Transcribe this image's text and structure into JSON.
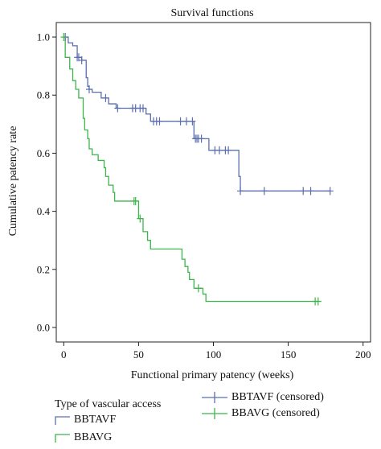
{
  "chart_data": {
    "type": "line",
    "title": "Survival functions",
    "xlabel": "Functional primary patency (weeks)",
    "ylabel": "Cumulative patency rate",
    "xlim": [
      -5,
      205
    ],
    "ylim": [
      -0.05,
      1.05
    ],
    "x_ticks": [
      0,
      50,
      100,
      150,
      200
    ],
    "y_ticks": [
      0.0,
      0.2,
      0.4,
      0.6,
      0.8,
      1.0
    ],
    "x_tick_labels": [
      "0",
      "50",
      "100",
      "150",
      "200"
    ],
    "y_tick_labels": [
      "0.0",
      "0.2",
      "0.4",
      "0.6",
      "0.8",
      "1.0"
    ],
    "grid": false,
    "legend_title": "Type of vascular access",
    "series": [
      {
        "name": "BBTAVF",
        "color": "#5b6fae",
        "x": [
          0,
          3,
          6,
          9,
          12,
          15,
          16,
          17,
          19,
          25,
          30,
          35,
          55,
          58,
          87,
          97,
          117,
          118,
          178
        ],
        "y": [
          1.0,
          0.98,
          0.97,
          0.93,
          0.92,
          0.86,
          0.83,
          0.82,
          0.81,
          0.79,
          0.77,
          0.755,
          0.735,
          0.71,
          0.65,
          0.61,
          0.52,
          0.47,
          0.47
        ]
      },
      {
        "name": "BBAVG",
        "color": "#3cb54a",
        "x": [
          0,
          1,
          4,
          6,
          8,
          10,
          13,
          14,
          16,
          17,
          19,
          23,
          27,
          28,
          30,
          33,
          34,
          40,
          47,
          50,
          53,
          56,
          58,
          61,
          79,
          81,
          83,
          84,
          87,
          93,
          95,
          170
        ],
        "y": [
          1.0,
          0.93,
          0.89,
          0.85,
          0.82,
          0.79,
          0.72,
          0.68,
          0.65,
          0.615,
          0.595,
          0.575,
          0.55,
          0.52,
          0.49,
          0.465,
          0.435,
          0.435,
          0.435,
          0.375,
          0.33,
          0.3,
          0.27,
          0.27,
          0.235,
          0.21,
          0.19,
          0.165,
          0.135,
          0.115,
          0.09,
          0.09
        ]
      },
      {
        "name": "BBTAVF (censored)",
        "color": "#5b6fae",
        "marker": "plus",
        "x": [
          1,
          9,
          10,
          12,
          17,
          28,
          36,
          46,
          48,
          51,
          53,
          60,
          62,
          64,
          78,
          82,
          86,
          88,
          89,
          90,
          92,
          101,
          104,
          108,
          110,
          118,
          134,
          160,
          165,
          178
        ],
        "y": [
          1.0,
          0.93,
          0.93,
          0.92,
          0.82,
          0.79,
          0.755,
          0.755,
          0.755,
          0.755,
          0.755,
          0.71,
          0.71,
          0.71,
          0.71,
          0.71,
          0.71,
          0.65,
          0.65,
          0.65,
          0.65,
          0.61,
          0.61,
          0.61,
          0.61,
          0.47,
          0.47,
          0.47,
          0.47,
          0.47
        ]
      },
      {
        "name": "BBAVG (censored)",
        "color": "#3cb54a",
        "marker": "plus",
        "x": [
          0,
          47,
          48,
          51,
          90,
          168,
          170
        ],
        "y": [
          1.0,
          0.435,
          0.435,
          0.375,
          0.135,
          0.09,
          0.09
        ]
      }
    ]
  }
}
